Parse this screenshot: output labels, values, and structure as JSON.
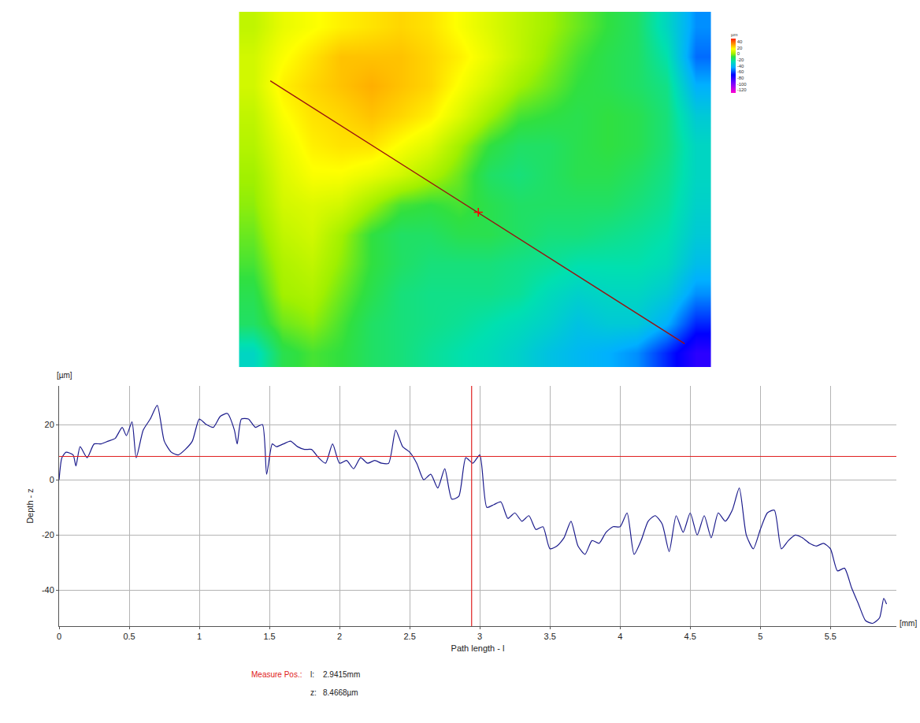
{
  "chart_data": [
    {
      "type": "heatmap",
      "x": [
        0.18,
        0.53,
        0.89,
        1.24,
        1.6,
        1.95,
        2.31,
        2.66,
        3.02,
        3.37,
        3.73,
        4.08,
        4.44,
        4.79,
        5.15,
        5.5
      ],
      "y": [
        0.18,
        0.54,
        0.89,
        1.25,
        1.61,
        1.96,
        2.32,
        2.68,
        3.03,
        3.39,
        3.75,
        4.1
      ],
      "z": [
        [
          5,
          12,
          15,
          18,
          20,
          22,
          20,
          15,
          10,
          5,
          0,
          -5,
          -10,
          -15,
          -30,
          -50
        ],
        [
          8,
          15,
          20,
          25,
          25,
          25,
          22,
          18,
          12,
          5,
          -2,
          -8,
          -12,
          -15,
          -25,
          -55
        ],
        [
          8,
          18,
          22,
          25,
          28,
          25,
          22,
          15,
          8,
          0,
          -5,
          -10,
          -12,
          -15,
          -20,
          -45
        ],
        [
          5,
          15,
          20,
          22,
          25,
          22,
          18,
          10,
          0,
          -8,
          -10,
          -12,
          -10,
          -12,
          -18,
          -35
        ],
        [
          3,
          12,
          18,
          20,
          20,
          15,
          10,
          0,
          -10,
          -15,
          -15,
          -12,
          -10,
          -12,
          -18,
          -30
        ],
        [
          0,
          10,
          15,
          15,
          12,
          8,
          2,
          -5,
          -15,
          -18,
          -15,
          -12,
          -12,
          -15,
          -20,
          -30
        ],
        [
          -2,
          8,
          10,
          8,
          0,
          -8,
          -10,
          -8,
          -12,
          -15,
          -15,
          -15,
          -15,
          -18,
          -22,
          -32
        ],
        [
          -5,
          5,
          8,
          0,
          -10,
          -15,
          -15,
          -12,
          -12,
          -15,
          -18,
          -18,
          -20,
          -22,
          -25,
          -35
        ],
        [
          -8,
          2,
          5,
          -2,
          -10,
          -15,
          -18,
          -18,
          -18,
          -20,
          -22,
          -25,
          -25,
          -25,
          -28,
          -40
        ],
        [
          -12,
          0,
          2,
          -5,
          -12,
          -18,
          -20,
          -20,
          -20,
          -22,
          -28,
          -32,
          -30,
          -30,
          -35,
          -50
        ],
        [
          -15,
          -5,
          -2,
          -8,
          -15,
          -18,
          -20,
          -22,
          -25,
          -28,
          -32,
          -38,
          -35,
          -35,
          -45,
          -65
        ],
        [
          -30,
          -12,
          -8,
          -10,
          -15,
          -18,
          -22,
          -25,
          -28,
          -32,
          -38,
          -42,
          -45,
          -50,
          -65,
          -80
        ]
      ],
      "xlim": [
        0,
        5.68
      ],
      "ylim": [
        4.28,
        0
      ],
      "zlim": [
        -130,
        50
      ],
      "zticks": [
        40,
        20,
        0,
        -20,
        -40,
        -60,
        -80,
        -100,
        -120
      ],
      "colorbar_title": "µm",
      "tick_labels": false,
      "path": {
        "x": [
          0.38,
          5.36
        ],
        "y": [
          0.83,
          3.99
        ],
        "color": "#9a1010"
      },
      "marker_point": {
        "x": 2.88,
        "y": 2.41,
        "color": "#ff0000",
        "marker": "cross"
      }
    },
    {
      "type": "line",
      "x_label": "Path length - l",
      "y_label": "Depth - z",
      "x_unit": "[mm]",
      "y_unit": "[µm]",
      "x": [
        0,
        0.02,
        0.05,
        0.1,
        0.12,
        0.15,
        0.2,
        0.25,
        0.3,
        0.35,
        0.4,
        0.45,
        0.48,
        0.52,
        0.55,
        0.6,
        0.65,
        0.7,
        0.75,
        0.8,
        0.85,
        0.9,
        0.95,
        1.0,
        1.05,
        1.1,
        1.15,
        1.2,
        1.25,
        1.27,
        1.3,
        1.35,
        1.4,
        1.45,
        1.48,
        1.52,
        1.55,
        1.6,
        1.65,
        1.7,
        1.75,
        1.8,
        1.85,
        1.9,
        1.95,
        2.0,
        2.05,
        2.1,
        2.15,
        2.2,
        2.25,
        2.3,
        2.35,
        2.4,
        2.45,
        2.5,
        2.55,
        2.6,
        2.65,
        2.7,
        2.75,
        2.8,
        2.85,
        2.9,
        2.95,
        3.0,
        3.05,
        3.1,
        3.15,
        3.2,
        3.25,
        3.3,
        3.35,
        3.4,
        3.45,
        3.5,
        3.55,
        3.6,
        3.65,
        3.7,
        3.75,
        3.8,
        3.85,
        3.9,
        3.95,
        4.0,
        4.05,
        4.1,
        4.15,
        4.2,
        4.25,
        4.3,
        4.35,
        4.4,
        4.45,
        4.5,
        4.55,
        4.6,
        4.65,
        4.7,
        4.75,
        4.8,
        4.85,
        4.9,
        4.95,
        5.0,
        5.05,
        5.1,
        5.15,
        5.2,
        5.25,
        5.3,
        5.35,
        5.4,
        5.45,
        5.5,
        5.55,
        5.6,
        5.65,
        5.7,
        5.75,
        5.8,
        5.85,
        5.88,
        5.9
      ],
      "values": [
        0,
        8,
        10,
        9,
        5,
        12,
        8,
        13,
        13,
        14,
        15,
        19,
        16,
        21,
        8,
        18,
        22,
        27,
        14,
        10,
        9,
        11,
        14,
        22,
        20,
        19,
        23,
        24,
        18,
        13,
        22,
        22,
        19,
        20,
        2,
        13,
        12,
        13,
        14,
        12,
        11,
        11,
        8,
        6,
        13,
        6,
        7,
        4,
        8,
        6,
        7,
        6,
        6,
        18,
        12,
        10,
        6,
        0,
        2,
        -3,
        4,
        -7,
        -6,
        8,
        6,
        9,
        -10,
        -9,
        -8,
        -14,
        -12,
        -15,
        -13,
        -18,
        -17,
        -25,
        -24,
        -21,
        -15,
        -24,
        -27,
        -22,
        -23,
        -19,
        -17,
        -17,
        -12,
        -27,
        -22,
        -15,
        -13,
        -16,
        -26,
        -13,
        -19,
        -12,
        -20,
        -13,
        -21,
        -12,
        -15,
        -11,
        -3,
        -20,
        -25,
        -18,
        -12,
        -11,
        -25,
        -22,
        -20,
        -21,
        -23,
        -24,
        -23,
        -25,
        -33,
        -32,
        -39,
        -45,
        -51,
        -52,
        -50,
        -43,
        -45
      ],
      "color": "#1c1c8c",
      "line_style": "solid",
      "xlim": [
        0,
        5.97
      ],
      "ylim": [
        -53,
        34
      ],
      "xticks": [
        0,
        0.5,
        1,
        1.5,
        2,
        2.5,
        3,
        3.5,
        4,
        4.5,
        5,
        5.5
      ],
      "yticks": [
        -40,
        -20,
        0,
        20
      ],
      "grid": true,
      "cursor": {
        "l": 2.9415,
        "z": 8.4668,
        "color": "#e02020",
        "label": "Measure Pos.:",
        "l_label": "l:",
        "l_text": "2.9415mm",
        "z_label": "z:",
        "z_text": "8.4668µm"
      }
    }
  ]
}
